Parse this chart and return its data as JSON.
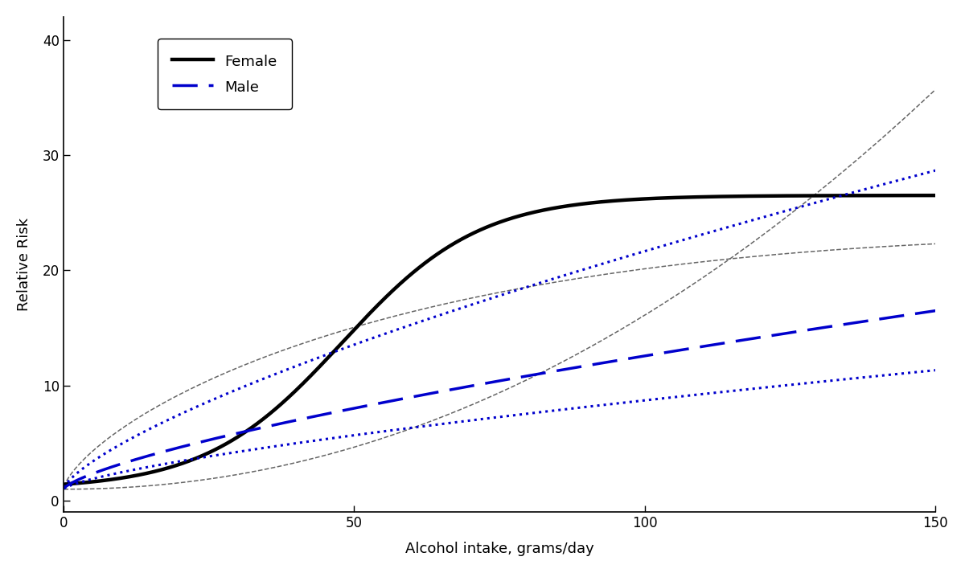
{
  "xlabel": "Alcohol intake, grams/day",
  "ylabel": "Relative Risk",
  "xlim": [
    0,
    150
  ],
  "ylim": [
    -1,
    42
  ],
  "yticks": [
    0,
    10,
    20,
    30,
    40
  ],
  "xticks": [
    0,
    50,
    100,
    150
  ],
  "female_color": "#000000",
  "male_color": "#0000cc",
  "female_ci_color": "#666666",
  "male_ci_color": "#0000cc",
  "legend_labels": [
    "Female",
    "Male"
  ],
  "figsize": [
    12.0,
    7.13
  ],
  "dpi": 100
}
